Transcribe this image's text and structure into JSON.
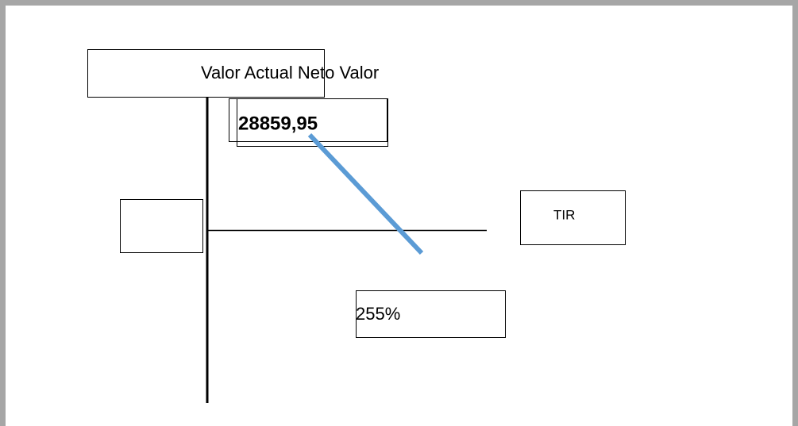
{
  "diagram": {
    "header": "Valor Actual Neto Valor",
    "npv": "28859,95",
    "irr_label": "TIR",
    "irr_value": "255%"
  }
}
